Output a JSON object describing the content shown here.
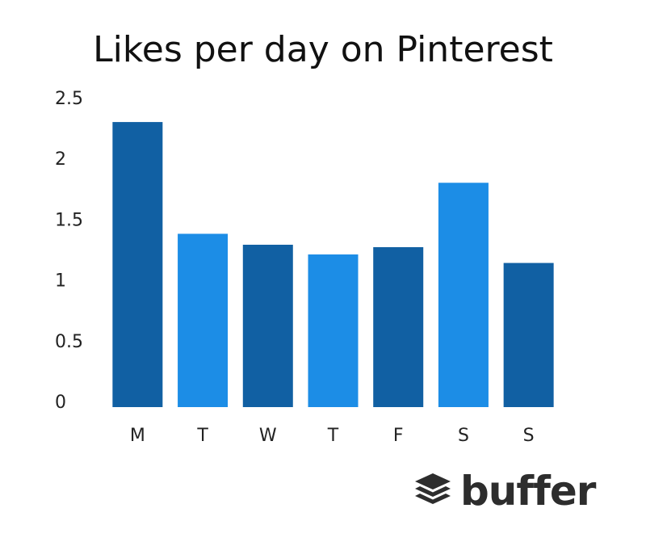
{
  "chart_data": {
    "type": "bar",
    "title": "Likes per day on Pinterest",
    "xlabel": "",
    "ylabel": "",
    "categories": [
      "M",
      "T",
      "W",
      "T",
      "F",
      "S",
      "S"
    ],
    "values": [
      2.3,
      1.38,
      1.29,
      1.21,
      1.27,
      1.8,
      1.14
    ],
    "ylim": [
      0,
      2.5
    ],
    "yticks": [
      "0",
      "0.5",
      "1",
      "1.5",
      "2",
      "2.5"
    ],
    "grid": false,
    "legend": "none",
    "colors": [
      "#1160a3",
      "#1c8de6",
      "#1160a3",
      "#1c8de6",
      "#1160a3",
      "#1c8de6",
      "#1160a3"
    ]
  },
  "logo": {
    "text": "buffer",
    "icon": "stack-layers-icon",
    "color": "#2d2d2d"
  }
}
